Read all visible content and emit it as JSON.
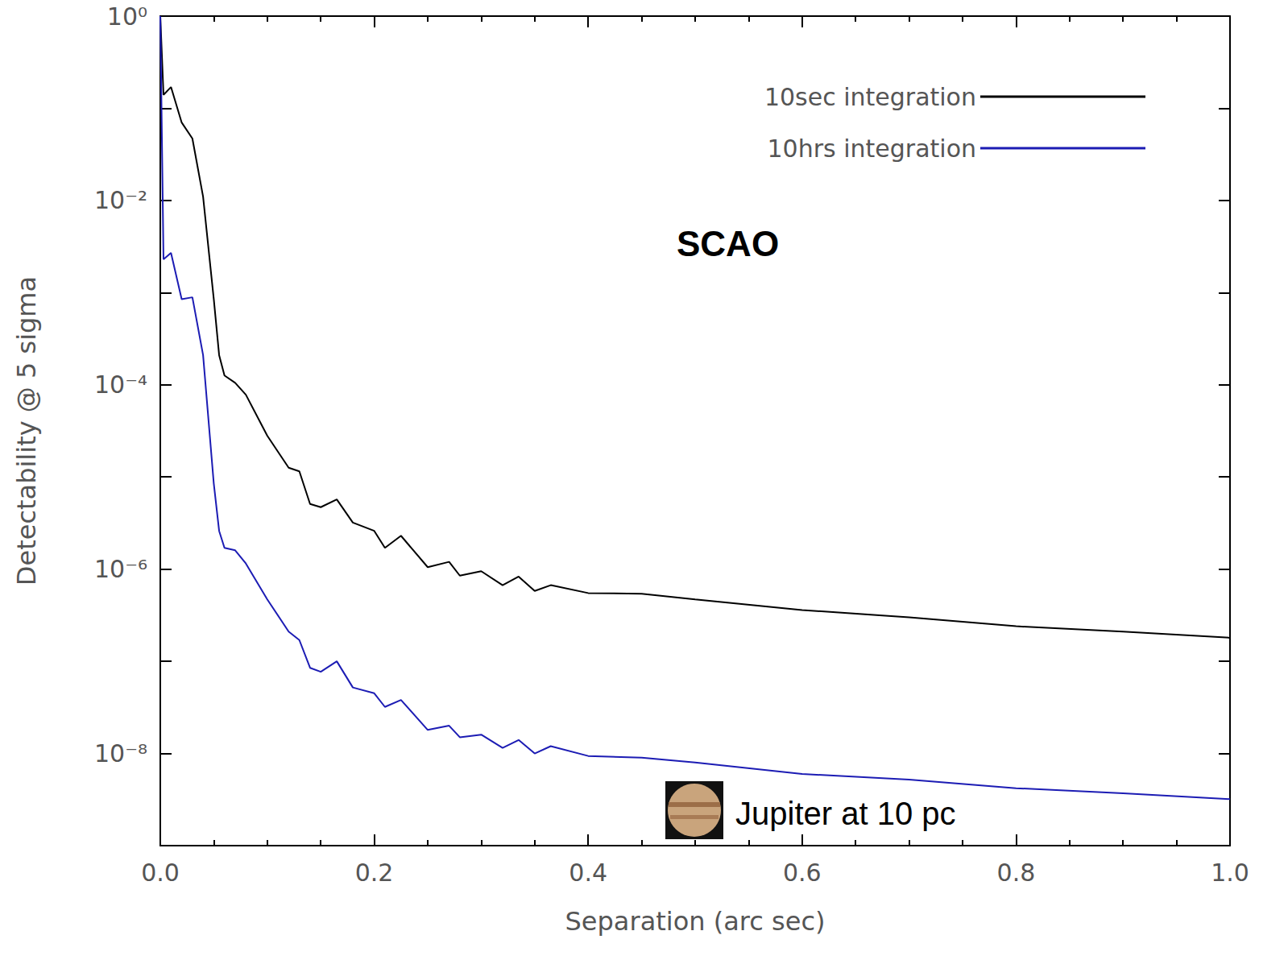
{
  "chart_data": {
    "type": "line",
    "x_label": "Separation (arc sec)",
    "y_label": "Detectability @ 5 sigma",
    "log": "y",
    "grid": false,
    "legend": "upper right",
    "annotations": [
      "SCAO",
      "Jupiter at 10 pc"
    ],
    "xlim": [
      0,
      1
    ],
    "xticks": [
      {
        "value": 0,
        "label": "0.0"
      },
      {
        "value": 0.2,
        "label": "0.2"
      },
      {
        "value": 0.4,
        "label": "0.4"
      },
      {
        "value": 0.6,
        "label": "0.6"
      },
      {
        "value": 0.8,
        "label": "0.8"
      },
      {
        "value": 1,
        "label": "1.0"
      }
    ],
    "ylim": [
      1e-09,
      1
    ],
    "yticks": [
      {
        "value": 1e-08,
        "label": "10⁻⁸"
      },
      {
        "value": 1e-06,
        "label": "10⁻⁶"
      },
      {
        "value": 0.0001,
        "label": "10⁻⁴"
      },
      {
        "value": 0.01,
        "label": "10⁻²"
      },
      {
        "value": 1,
        "label": "10⁰"
      }
    ],
    "x": [
      0,
      0.003,
      0.01,
      0.02,
      0.03,
      0.04,
      0.05,
      0.055,
      0.06,
      0.07,
      0.08,
      0.1,
      0.12,
      0.13,
      0.14,
      0.15,
      0.165,
      0.18,
      0.2,
      0.21,
      0.225,
      0.25,
      0.27,
      0.28,
      0.3,
      0.32,
      0.335,
      0.35,
      0.365,
      0.4,
      0.45,
      0.5,
      0.6,
      0.7,
      0.8,
      0.9,
      1.0
    ],
    "series": [
      {
        "name": "10sec integration",
        "color": "#000000",
        "values": [
          1,
          0.14,
          0.17,
          0.07,
          0.047,
          0.011,
          0.00085,
          0.00021,
          0.000126,
          0.000105,
          7.8e-05,
          2.8e-05,
          1.26e-05,
          1.15e-05,
          5.1e-06,
          4.7e-06,
          5.7e-06,
          3.2e-06,
          2.6e-06,
          1.7e-06,
          2.3e-06,
          1.05e-06,
          1.2e-06,
          8.5e-07,
          9.5e-07,
          6.7e-07,
          8.3e-07,
          5.8e-07,
          6.7e-07,
          5.5e-07,
          5.4e-07,
          4.7e-07,
          3.6e-07,
          3e-07,
          2.4e-07,
          2.1e-07,
          1.8e-07
        ]
      },
      {
        "name": "10hrs integration",
        "color": "#1c1cb4",
        "values": [
          1,
          0.0023,
          0.0027,
          0.00085,
          0.00089,
          0.00021,
          8.5e-06,
          2.6e-06,
          1.7e-06,
          1.6e-06,
          1.15e-06,
          4.7e-07,
          2.1e-07,
          1.7e-07,
          8.5e-08,
          7.7e-08,
          1e-07,
          5.2e-08,
          4.5e-08,
          3.2e-08,
          3.8e-08,
          1.8e-08,
          2e-08,
          1.5e-08,
          1.6e-08,
          1.15e-08,
          1.4e-08,
          1e-08,
          1.2e-08,
          9.4e-09,
          9e-09,
          8e-09,
          6e-09,
          5.2e-09,
          4.2e-09,
          3.7e-09,
          3.2e-09
        ]
      }
    ]
  }
}
